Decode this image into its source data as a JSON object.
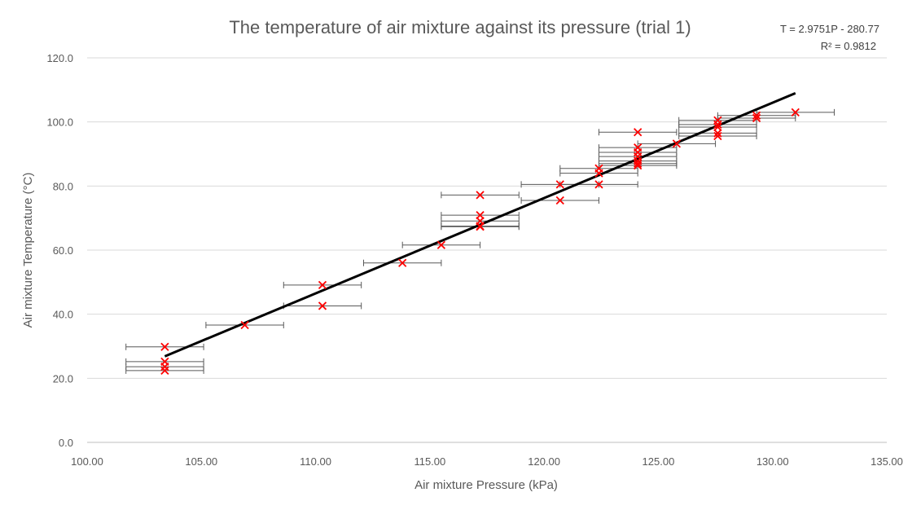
{
  "chart_data": {
    "type": "scatter",
    "title": "The temperature of air mixture against its pressure (trial 1)",
    "xlabel": "Air mixture Pressure (kPa)",
    "ylabel": "Air mixture Temperature (°C)",
    "xlim": [
      100,
      135
    ],
    "ylim": [
      0,
      120
    ],
    "x_ticks": [
      "100.00",
      "105.00",
      "110.00",
      "115.00",
      "120.00",
      "125.00",
      "130.00",
      "135.00"
    ],
    "y_ticks": [
      "0.0",
      "20.0",
      "40.0",
      "60.0",
      "80.0",
      "100.0",
      "120.0"
    ],
    "x_tick_values": [
      100,
      105,
      110,
      115,
      120,
      125,
      130,
      135
    ],
    "y_tick_values": [
      0,
      20,
      40,
      60,
      80,
      100,
      120
    ],
    "grid": "horizontal",
    "marker_color": "#ff0000",
    "line_color": "#000000",
    "x_error": 1.7,
    "trendline": {
      "equation": "T = 2.9751P - 280.77",
      "r_squared": "R² = 0.9812",
      "slope": 2.9751,
      "intercept": -280.77,
      "x_range": [
        103.4,
        131.0
      ]
    },
    "series": [
      {
        "x": [
          103.4,
          103.4,
          103.4,
          103.4,
          106.9,
          110.3,
          110.3,
          113.8,
          115.5,
          117.2,
          117.2,
          117.2,
          117.2,
          117.2,
          120.7,
          120.7,
          122.4,
          122.4,
          122.4,
          124.1,
          124.1,
          124.1,
          124.1,
          124.1,
          124.1,
          124.1,
          125.8,
          127.6,
          127.6,
          127.6,
          127.6,
          127.6,
          129.3,
          129.3,
          131.0
        ],
        "y": [
          29.8,
          25.2,
          23.6,
          22.4,
          36.6,
          49.1,
          42.6,
          56.0,
          61.6,
          77.2,
          70.9,
          69.1,
          67.5,
          67.3,
          80.5,
          75.5,
          85.5,
          84.0,
          80.5,
          96.8,
          92.0,
          90.5,
          89.2,
          87.8,
          87.0,
          86.4,
          93.2,
          100.5,
          99.2,
          98.4,
          96.5,
          95.6,
          102.0,
          101.2,
          103.0
        ]
      }
    ]
  }
}
